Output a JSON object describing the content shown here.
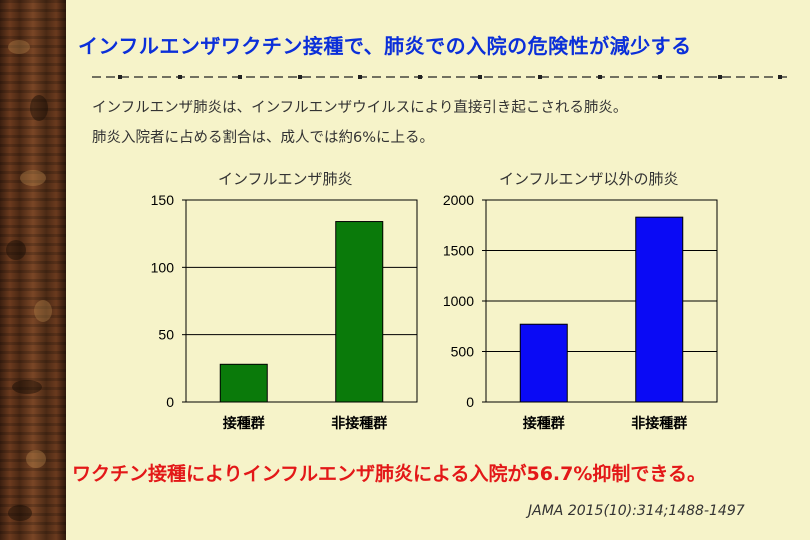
{
  "slide": {
    "title": "インフルエンザワクチン接種で、肺炎での入院の危険性が減少する",
    "intro_line1": "インフルエンザ肺炎は、インフルエンザウイルスにより直接引き起こされる肺炎。",
    "intro_line2": "肺炎入院者に占める割合は、成人では約6%に上る。",
    "conclusion": "ワクチン接種によりインフルエンザ肺炎による入院が56.7%抑制できる。",
    "citation": "JAMA 2015(10):314;1488-1497"
  },
  "chart_data": [
    {
      "type": "bar",
      "title": "インフルエンザ肺炎",
      "categories": [
        "接種群",
        "非接種群"
      ],
      "values": [
        28,
        134
      ],
      "ylim": [
        0,
        150
      ],
      "yticks": [
        0,
        50,
        100,
        150
      ],
      "grid": true,
      "color": "#0a7a0a"
    },
    {
      "type": "bar",
      "title": "インフルエンザ以外の肺炎",
      "categories": [
        "接種群",
        "非接種群"
      ],
      "values": [
        770,
        1830
      ],
      "ylim": [
        0,
        2000
      ],
      "yticks": [
        0,
        500,
        1000,
        1500,
        2000
      ],
      "grid": true,
      "color": "#0a0af5"
    }
  ]
}
